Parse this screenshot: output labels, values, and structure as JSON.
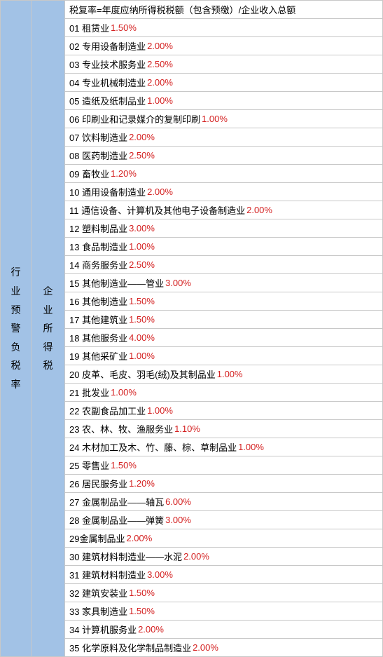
{
  "colors": {
    "sidebar_bg": "#a2c2e6",
    "border": "#c8c8c8",
    "text": "#000000",
    "rate": "#d42020",
    "background": "#ffffff"
  },
  "leftLabel": "行业预警负税率",
  "midLabel": "企业所得税",
  "headerText": "税复率=年度应纳所得税税额（包含预缴）/企业收入总额",
  "rows": [
    {
      "num": "01",
      "name": "租赁业",
      "rate": "1.50%"
    },
    {
      "num": "02",
      "name": "专用设备制造业",
      "rate": "2.00%"
    },
    {
      "num": "03",
      "name": "专业技术服务业",
      "rate": "2.50%"
    },
    {
      "num": "04",
      "name": "专业机械制造业",
      "rate": "2.00%"
    },
    {
      "num": "05",
      "name": "造纸及纸制品业",
      "rate": "1.00%"
    },
    {
      "num": "06",
      "name": "印刷业和记录媒介的复制印刷",
      "rate": "1.00%"
    },
    {
      "num": "07",
      "name": "饮料制造业",
      "rate": "2.00%"
    },
    {
      "num": "08",
      "name": "医药制造业",
      "rate": "2.50%"
    },
    {
      "num": "09",
      "name": "畜牧业",
      "rate": "1.20%"
    },
    {
      "num": "10",
      "name": "通用设备制造业",
      "rate": "2.00%"
    },
    {
      "num": "11",
      "name": "通信设备、计算机及其他电子设备制造业",
      "rate": "2.00%"
    },
    {
      "num": "12",
      "name": "塑料制品业",
      "rate": "3.00%"
    },
    {
      "num": "13",
      "name": "食品制造业",
      "rate": "1.00%"
    },
    {
      "num": "14",
      "name": "商务服务业",
      "rate": "2.50%"
    },
    {
      "num": "15",
      "name": "其他制造业——管业",
      "rate": "3.00%"
    },
    {
      "num": "16",
      "name": "其他制造业",
      "rate": "1.50%"
    },
    {
      "num": "17",
      "name": "其他建筑业",
      "rate": "1.50%"
    },
    {
      "num": "18",
      "name": "其他服务业",
      "rate": "4.00%"
    },
    {
      "num": "19",
      "name": "其他采矿业",
      "rate": "1.00%"
    },
    {
      "num": "20",
      "name": "皮革、毛皮、羽毛(绒)及其制品业",
      "rate": "1.00%"
    },
    {
      "num": "21",
      "name": "批发业",
      "rate": "1.00%"
    },
    {
      "num": "22",
      "name": "农副食品加工业",
      "rate": "1.00%"
    },
    {
      "num": "23",
      "name": "农、林、牧、渔服务业",
      "rate": "1.10%"
    },
    {
      "num": "24",
      "name": "木材加工及木、竹、藤、棕、草制品业",
      "rate": "1.00%"
    },
    {
      "num": "25",
      "name": "零售业",
      "rate": "1.50%"
    },
    {
      "num": "26",
      "name": "居民服务业",
      "rate": "1.20%"
    },
    {
      "num": "27",
      "name": "金属制品业——轴瓦",
      "rate": "6.00%"
    },
    {
      "num": "28",
      "name": "金属制品业——弹簧",
      "rate": "3.00%"
    },
    {
      "num": "29",
      "name": "金属制品业",
      "rate": "2.00%",
      "nospace": true
    },
    {
      "num": "30",
      "name": "建筑材料制造业——水泥",
      "rate": "2.00%"
    },
    {
      "num": "31",
      "name": "建筑材料制造业",
      "rate": "3.00%"
    },
    {
      "num": "32",
      "name": "建筑安装业",
      "rate": "1.50%"
    },
    {
      "num": "33",
      "name": "家具制造业",
      "rate": "1.50%"
    },
    {
      "num": "34",
      "name": "计算机服务业",
      "rate": "2.00%"
    },
    {
      "num": "35",
      "name": "化学原料及化学制品制造业",
      "rate": "2.00%"
    }
  ]
}
